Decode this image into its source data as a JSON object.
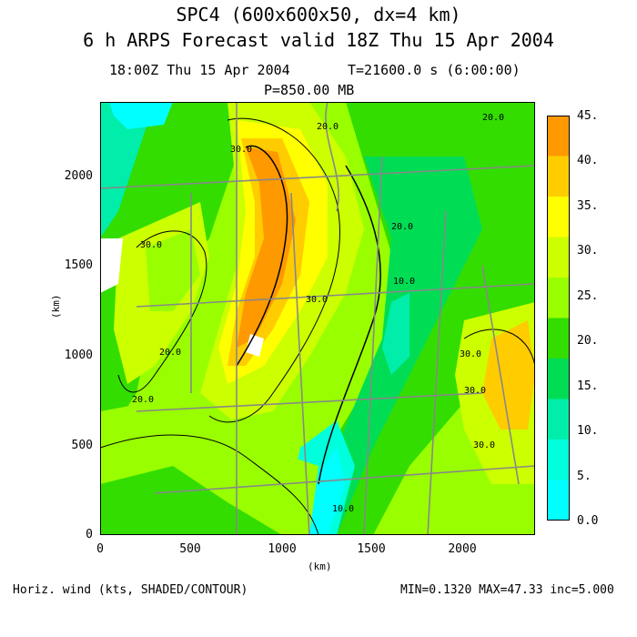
{
  "title": {
    "line1": "SPC4 (600x600x50, dx=4 km)",
    "line2": "6 h ARPS Forecast valid 18Z Thu 15 Apr 2004"
  },
  "info": {
    "time": "18:00Z Thu 15 Apr 2004",
    "t": "T=21600.0 s (6:00:00)",
    "p": "P=850.00 MB"
  },
  "axes": {
    "x_label": "(km)",
    "y_label": "(km)",
    "x_ticks": [
      "0",
      "500",
      "1000",
      "1500",
      "2000"
    ],
    "y_ticks": [
      "0",
      "500",
      "1000",
      "1500",
      "2000"
    ]
  },
  "colorbar": {
    "labels": [
      "45.",
      "40.",
      "35.",
      "30.",
      "25.",
      "20.",
      "15.",
      "10.",
      "5.",
      "0.0"
    ],
    "colors": [
      "#ff9900",
      "#ffcc00",
      "#ffff00",
      "#ccff00",
      "#99ff00",
      "#33dd00",
      "#00dd55",
      "#00eeaa",
      "#00ffdd",
      "#00ffff"
    ]
  },
  "contour_labels": [
    "20.0",
    "30.0",
    "20.0",
    "30.0",
    "30.0",
    "30.0",
    "20.0",
    "20.0",
    "10.0",
    "10.0",
    "30.0",
    "30.0",
    "20.0"
  ],
  "footer": {
    "left": "Horiz. wind (kts, SHADED/CONTOUR)",
    "right": "MIN=0.1320 MAX=47.33 inc=5.000"
  }
}
